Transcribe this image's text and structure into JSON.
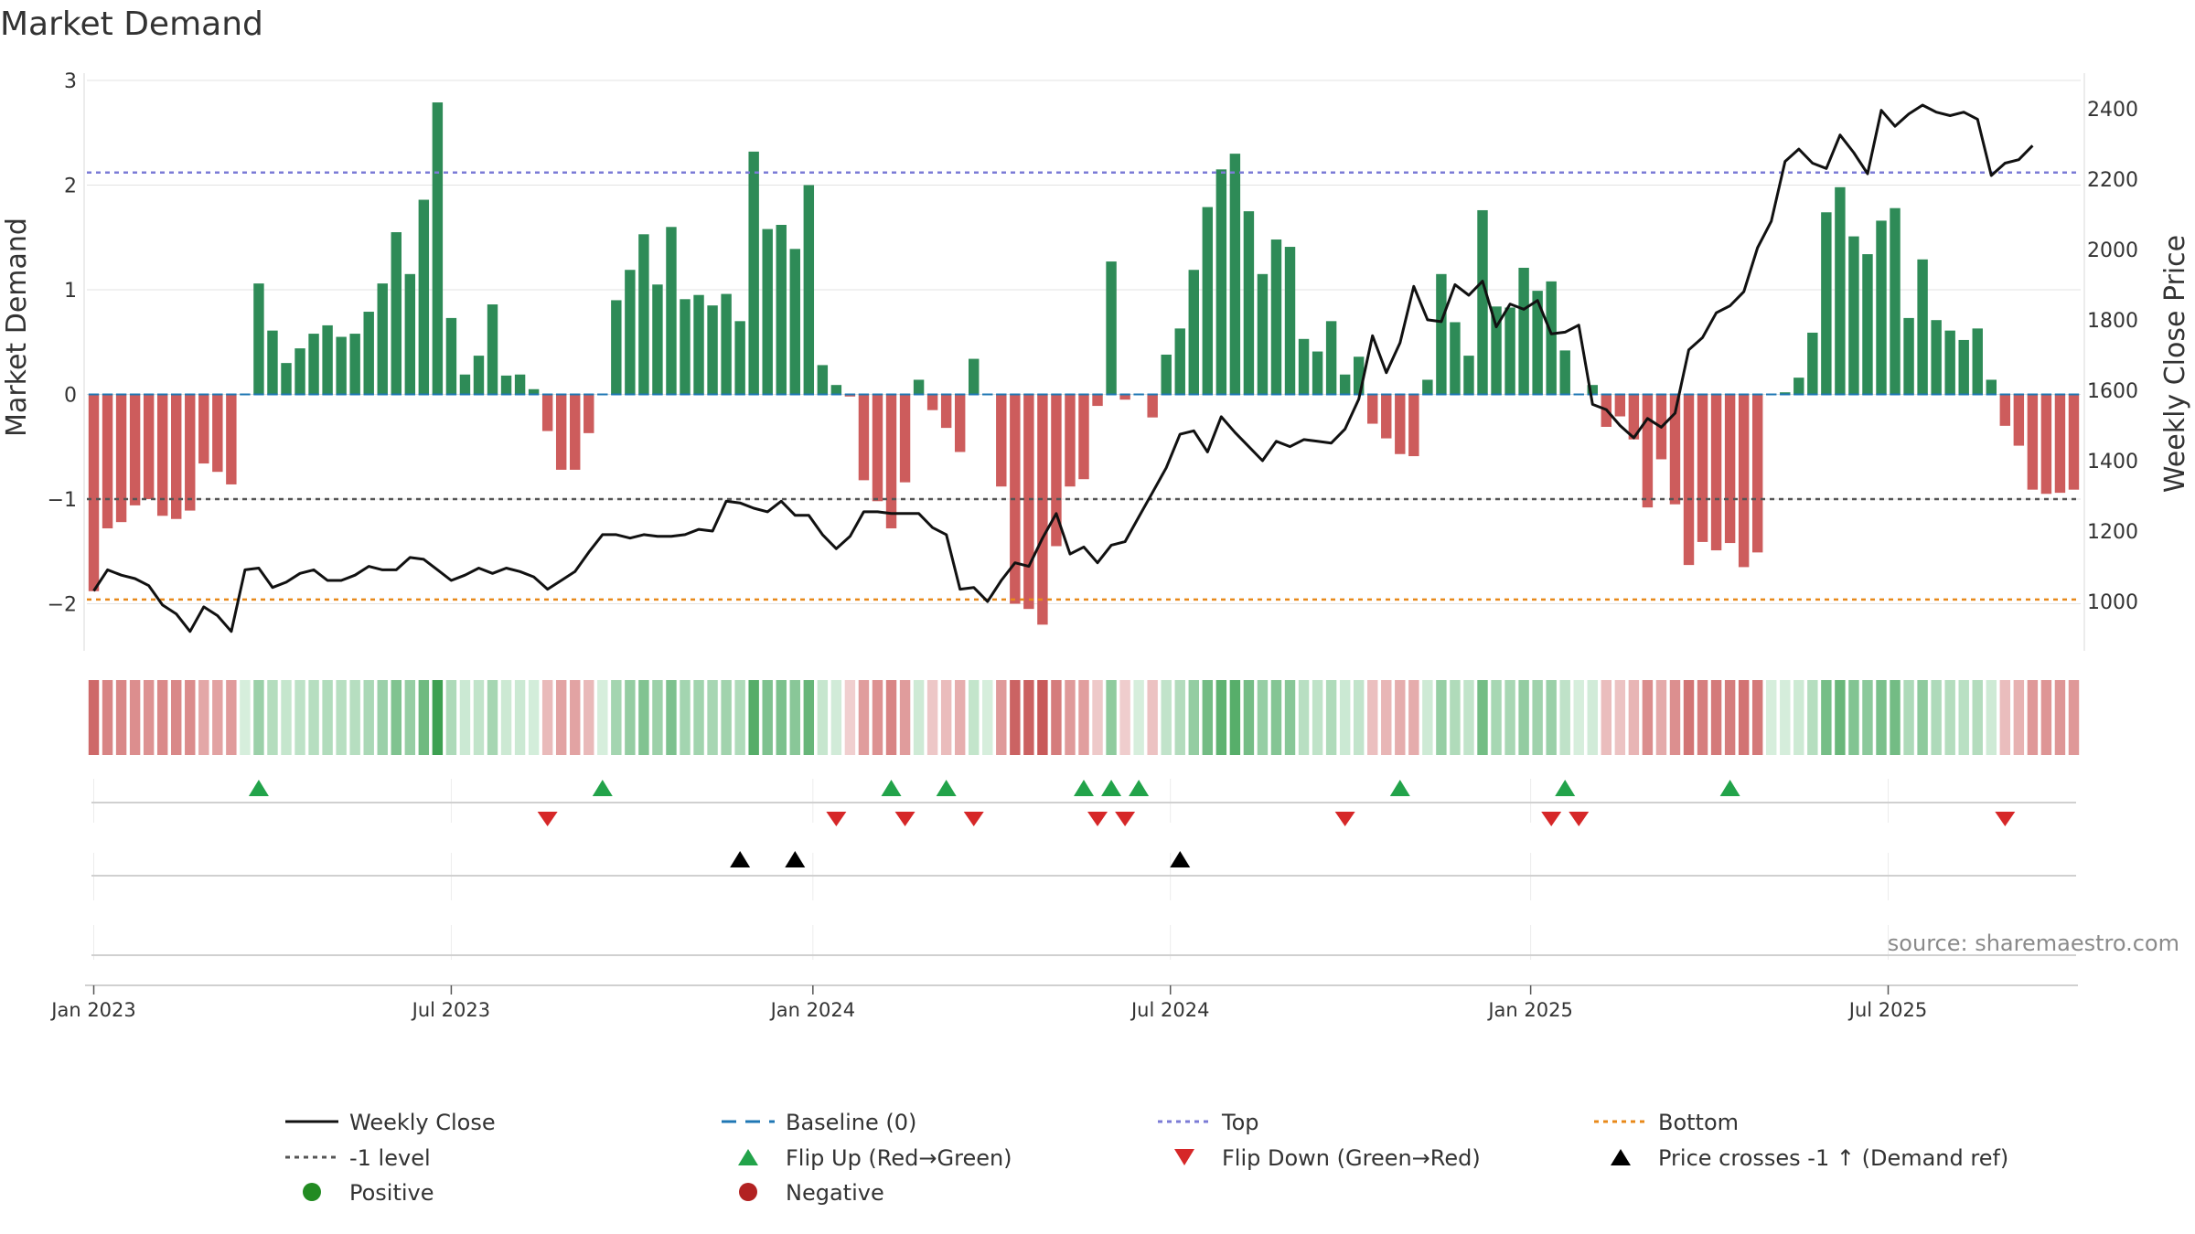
{
  "colors": {
    "positive": "#2e8b57",
    "negative": "#cd5c5c",
    "line": "#111111",
    "baseline": "#1f77b4",
    "top": "#7b7bd6",
    "minus_one": "#555555",
    "bottom": "#e8891a",
    "flip_up": "#22a34a",
    "flip_down": "#d62728",
    "cross": "#000000",
    "pos_dot": "#228b22",
    "neg_dot": "#b22222"
  },
  "chart_data": {
    "type": "bar",
    "title": "Market Demand",
    "source": "source: sharemaestro.com",
    "ylabel": "Market Demand",
    "ylabel_right": "Weekly Close Price",
    "ylim": [
      -2.45,
      3.0
    ],
    "ylim_right": [
      860,
      2480
    ],
    "yticks": [
      3,
      2,
      1,
      0,
      -1,
      -2
    ],
    "ytick_labels": [
      "3",
      "2",
      "1",
      "0",
      "−1",
      "−2"
    ],
    "yticks_right": [
      1000,
      1200,
      1400,
      1600,
      1800,
      2000,
      2200,
      2400
    ],
    "levels": {
      "top": 2.12,
      "minus_one": -1.0,
      "bottom": -1.96,
      "baseline": 0
    },
    "dates": [
      {
        "label": "Jan 2023",
        "week": 1
      },
      {
        "label": "Jul 2023",
        "week": 27
      },
      {
        "label": "Jan 2024",
        "week": 53.3
      },
      {
        "label": "Jul 2024",
        "week": 79.3
      },
      {
        "label": "Jan 2025",
        "week": 105.5
      },
      {
        "label": "Jul 2025",
        "week": 131.5
      }
    ],
    "demand": [
      -1.88,
      -1.28,
      -1.22,
      -1.06,
      -1.0,
      -1.16,
      -1.19,
      -1.11,
      -0.66,
      -0.74,
      -0.86,
      0.0,
      1.06,
      0.61,
      0.3,
      0.44,
      0.58,
      0.66,
      0.55,
      0.58,
      0.79,
      1.06,
      1.55,
      1.15,
      1.86,
      2.79,
      0.73,
      0.19,
      0.37,
      0.86,
      0.18,
      0.19,
      0.05,
      -0.35,
      -0.72,
      -0.72,
      -0.37,
      0.0,
      0.9,
      1.19,
      1.53,
      1.05,
      1.6,
      0.91,
      0.95,
      0.85,
      0.96,
      0.7,
      2.32,
      1.58,
      1.62,
      1.39,
      2.0,
      0.28,
      0.09,
      -0.02,
      -0.82,
      -1.02,
      -1.28,
      -0.84,
      0.14,
      -0.15,
      -0.32,
      -0.55,
      0.34,
      0.0,
      -0.88,
      -2.0,
      -2.05,
      -2.2,
      -1.45,
      -0.88,
      -0.81,
      -0.11,
      1.27,
      -0.05,
      0.0,
      -0.22,
      0.38,
      0.63,
      1.19,
      1.79,
      2.15,
      2.3,
      1.75,
      1.15,
      1.48,
      1.41,
      0.53,
      0.41,
      0.7,
      0.19,
      0.36,
      -0.28,
      -0.42,
      -0.57,
      -0.59,
      0.14,
      1.15,
      0.69,
      0.37,
      1.76,
      0.84,
      0.83,
      1.21,
      0.99,
      1.08,
      0.42,
      0.0,
      0.09,
      -0.31,
      -0.21,
      -0.43,
      -1.08,
      -0.62,
      -1.05,
      -1.63,
      -1.41,
      -1.49,
      -1.42,
      -1.65,
      -1.51,
      0.0,
      0.02,
      0.16,
      0.59,
      1.74,
      1.98,
      1.51,
      1.34,
      1.66,
      1.78,
      0.73,
      1.29,
      0.71,
      0.61,
      0.52,
      0.63,
      0.14,
      -0.3,
      -0.49,
      -0.91,
      -0.95,
      -0.94,
      -0.91
    ],
    "price": [
      1030,
      1090,
      1075,
      1065,
      1045,
      990,
      965,
      915,
      985,
      960,
      915,
      1090,
      1095,
      1040,
      1055,
      1080,
      1090,
      1060,
      1060,
      1075,
      1100,
      1090,
      1090,
      1125,
      1120,
      1090,
      1060,
      1075,
      1095,
      1080,
      1095,
      1085,
      1070,
      1035,
      1060,
      1085,
      1140,
      1190,
      1190,
      1180,
      1190,
      1185,
      1185,
      1190,
      1205,
      1200,
      1285,
      1280,
      1265,
      1255,
      1285,
      1245,
      1245,
      1190,
      1150,
      1185,
      1255,
      1255,
      1250,
      1250,
      1250,
      1210,
      1190,
      1035,
      1040,
      1000,
      1060,
      1110,
      1100,
      1180,
      1250,
      1135,
      1155,
      1110,
      1160,
      1170,
      1240,
      1310,
      1380,
      1475,
      1485,
      1425,
      1525,
      1480,
      1440,
      1400,
      1455,
      1440,
      1460,
      1455,
      1450,
      1490,
      1575,
      1755,
      1650,
      1735,
      1895,
      1800,
      1795,
      1900,
      1870,
      1910,
      1780,
      1845,
      1830,
      1855,
      1760,
      1765,
      1785,
      1560,
      1545,
      1500,
      1465,
      1520,
      1495,
      1535,
      1715,
      1750,
      1820,
      1840,
      1880,
      2005,
      2080,
      2250,
      2285,
      2245,
      2230,
      2325,
      2275,
      2215,
      2395,
      2350,
      2385,
      2410,
      2390,
      2380,
      2390,
      2370,
      2210,
      2245,
      2255,
      2295
    ],
    "flip_up": [
      12,
      37,
      58,
      62,
      72,
      74,
      76,
      95,
      107,
      119
    ],
    "flip_down": [
      33,
      54,
      59,
      64,
      73,
      75,
      91,
      106,
      108,
      139
    ],
    "price_cross_up": [
      47,
      51,
      79
    ],
    "legend": {
      "weekly_close": "Weekly Close",
      "minus_one": "-1 level",
      "positive": "Positive",
      "baseline": "Baseline (0)",
      "flip_up": "Flip Up (Red→Green)",
      "negative": "Negative",
      "top": "Top",
      "flip_down": "Flip Down (Green→Red)",
      "bottom": "Bottom",
      "price_cross": "Price crosses -1 ↑ (Demand ref)"
    }
  }
}
